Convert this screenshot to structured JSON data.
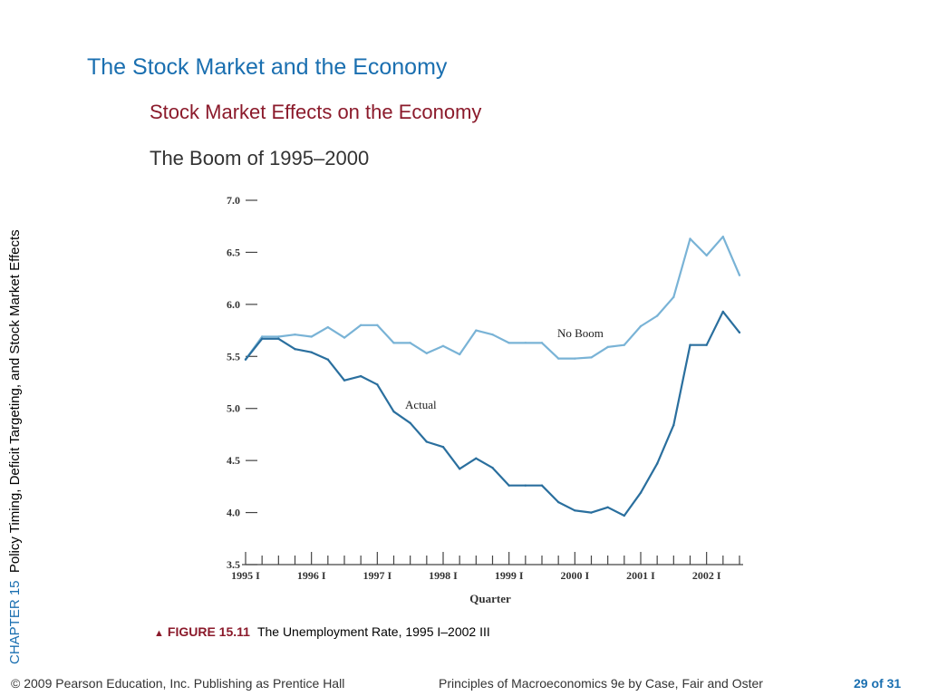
{
  "side_label": {
    "chapter": "CHAPTER 15",
    "topic": "Policy Timing, Deficit Targeting, and Stock Market Effects"
  },
  "title": "The Stock Market and the Economy",
  "subtitle": "Stock Market Effects on the Economy",
  "subsubtitle": "The Boom of 1995–2000",
  "caption": {
    "figure": "FIGURE 15.11",
    "text": "The Unemployment Rate, 1995 I–2002 III"
  },
  "footer": {
    "copyright": "© 2009 Pearson Education, Inc. Publishing as Prentice Hall",
    "book": "Principles of Macroeconomics 9e by Case, Fair and Oster",
    "page": "29 of 31"
  },
  "colors": {
    "actual": "#2a6f9e",
    "no_boom": "#79b3d6",
    "title": "#1a6fb0",
    "subtitle": "#8b1a2b"
  },
  "chart_data": {
    "type": "line",
    "xlabel": "Quarter",
    "ylabel": "",
    "ylim": [
      3.5,
      7.0
    ],
    "y_ticks": [
      "3.5",
      "4.0",
      "4.5",
      "5.0",
      "5.5",
      "6.0",
      "6.5",
      "7.0"
    ],
    "x_tick_labels": [
      "1995 I",
      "1996 I",
      "1997 I",
      "1998 I",
      "1999 I",
      "2000 I",
      "2001 I",
      "2002 I"
    ],
    "x_tick_label_index": [
      0,
      4,
      8,
      12,
      16,
      20,
      24,
      28
    ],
    "quarters": [
      "1995 I",
      "1995 II",
      "1995 III",
      "1995 IV",
      "1996 I",
      "1996 II",
      "1996 III",
      "1996 IV",
      "1997 I",
      "1997 II",
      "1997 III",
      "1997 IV",
      "1998 I",
      "1998 II",
      "1998 III",
      "1998 IV",
      "1999 I",
      "1999 II",
      "1999 III",
      "1999 IV",
      "2000 I",
      "2000 II",
      "2000 III",
      "2000 IV",
      "2001 I",
      "2001 II",
      "2001 III",
      "2001 IV",
      "2002 I",
      "2002 II",
      "2002 III"
    ],
    "series": [
      {
        "name": "No Boom",
        "values": [
          5.47,
          5.69,
          5.69,
          5.71,
          5.69,
          5.78,
          5.68,
          5.8,
          5.8,
          5.63,
          5.63,
          5.53,
          5.6,
          5.52,
          5.75,
          5.71,
          5.63,
          5.63,
          5.63,
          5.48,
          5.48,
          5.49,
          5.59,
          5.61,
          5.79,
          5.89,
          6.07,
          6.63,
          6.47,
          6.65,
          6.28
        ]
      },
      {
        "name": "Actual",
        "values": [
          5.47,
          5.67,
          5.67,
          5.57,
          5.54,
          5.47,
          5.27,
          5.31,
          5.23,
          4.97,
          4.86,
          4.68,
          4.63,
          4.42,
          4.52,
          4.43,
          4.26,
          4.26,
          4.26,
          4.1,
          4.02,
          4.0,
          4.05,
          3.97,
          4.19,
          4.47,
          4.84,
          5.61,
          5.61,
          5.93,
          5.73
        ]
      }
    ]
  }
}
